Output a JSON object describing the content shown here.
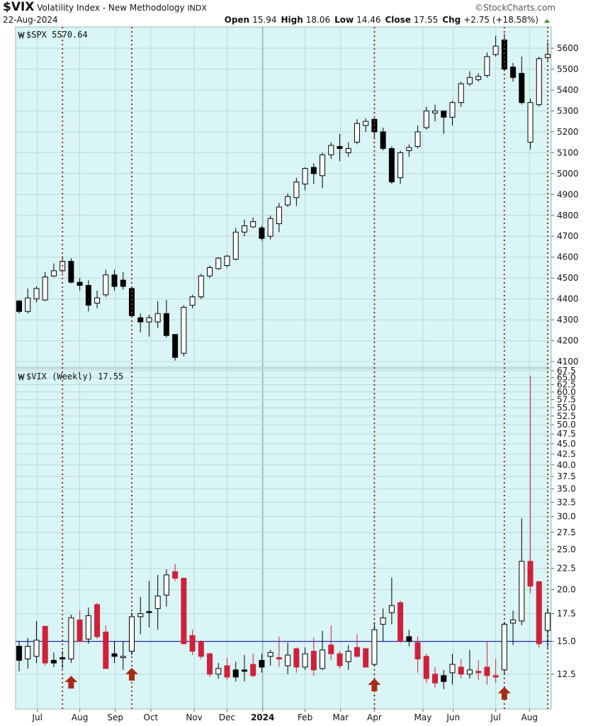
{
  "header": {
    "symbol": "$VIX",
    "name": "Volatility Index - New Methodology",
    "exchange": "INDX",
    "date": "22-Aug-2024",
    "copyright": "©StockCharts.com",
    "quote": [
      {
        "label": "Open",
        "value": 15.94
      },
      {
        "label": "High",
        "value": 18.06
      },
      {
        "label": "Low",
        "value": 14.46
      },
      {
        "label": "Close",
        "value": 17.55
      },
      {
        "label": "Chg",
        "value": "+2.75 (+18.58%)"
      }
    ]
  },
  "chart_data": [
    {
      "type": "candlestick",
      "label": "$SPX 5570.64",
      "categories": [
        null,
        null,
        null,
        null,
        null,
        null,
        null,
        null,
        null,
        null,
        null,
        null,
        null,
        null,
        null,
        null,
        null,
        null,
        null,
        null,
        null,
        null,
        null,
        null,
        null,
        null,
        null,
        null,
        null,
        null,
        null,
        null,
        null,
        null,
        null,
        null,
        null,
        null,
        null,
        null,
        null,
        null,
        null,
        null,
        null,
        null,
        null,
        null,
        null,
        null,
        null,
        null,
        null,
        null,
        null,
        null,
        null,
        null,
        null,
        null,
        null,
        null
      ],
      "open": [
        4390,
        4340,
        4400,
        4395,
        4510,
        4535,
        4580,
        4480,
        4465,
        4380,
        4420,
        4515,
        4490,
        4450,
        4310,
        4290,
        4290,
        4330,
        4230,
        4140,
        4370,
        4410,
        4510,
        4545,
        4560,
        4590,
        4720,
        4745,
        4740,
        4700,
        4760,
        4850,
        4885,
        4950,
        5030,
        4990,
        5090,
        5130,
        5100,
        5150,
        5230,
        5260,
        5200,
        5120,
        4980,
        5110,
        5130,
        5220,
        5290,
        5300,
        5270,
        5340,
        5430,
        5450,
        5470,
        5570,
        5640,
        5510,
        5480,
        5150,
        5330,
        5555
      ],
      "high": [
        4395,
        4450,
        4460,
        4530,
        4570,
        4605,
        4595,
        4500,
        4490,
        4440,
        4540,
        4540,
        4530,
        4460,
        4330,
        4325,
        4390,
        4395,
        4230,
        4370,
        4420,
        4520,
        4560,
        4600,
        4610,
        4740,
        4780,
        4790,
        4750,
        4800,
        4860,
        4905,
        4980,
        5030,
        5050,
        5100,
        5150,
        5190,
        5150,
        5260,
        5265,
        5265,
        5220,
        5130,
        5110,
        5140,
        5230,
        5320,
        5330,
        5300,
        5350,
        5440,
        5490,
        5480,
        5580,
        5660,
        5670,
        5530,
        5560,
        5360,
        5560,
        5630
      ],
      "low": [
        4330,
        4330,
        4385,
        4390,
        4505,
        4525,
        4475,
        4440,
        4340,
        4355,
        4410,
        4440,
        4445,
        4315,
        4240,
        4220,
        4260,
        4215,
        4105,
        4125,
        4355,
        4400,
        4500,
        4540,
        4550,
        4585,
        4700,
        4740,
        4680,
        4685,
        4720,
        4840,
        4845,
        4920,
        4950,
        4930,
        5070,
        5060,
        5080,
        5140,
        5200,
        5170,
        5110,
        4950,
        4950,
        5080,
        5120,
        5210,
        5250,
        5190,
        5230,
        5320,
        5420,
        5440,
        5460,
        5560,
        5490,
        5440,
        5330,
        5115,
        5320,
        5540
      ],
      "close": [
        4340,
        4405,
        4450,
        4505,
        4535,
        4580,
        4480,
        4465,
        4370,
        4405,
        4515,
        4460,
        4460,
        4320,
        4290,
        4310,
        4330,
        4225,
        4120,
        4360,
        4410,
        4510,
        4550,
        4595,
        4605,
        4720,
        4750,
        4770,
        4690,
        4785,
        4840,
        4890,
        4960,
        5025,
        5000,
        5090,
        5135,
        5120,
        5120,
        5240,
        5250,
        5200,
        5120,
        4960,
        5100,
        5125,
        5200,
        5300,
        5300,
        5270,
        5340,
        5430,
        5460,
        5465,
        5560,
        5610,
        5500,
        5460,
        5340,
        5340,
        5550,
        5570
      ],
      "up_color": "#000000",
      "down_color": "#000000",
      "color_by_change": false,
      "ylim": [
        4073,
        5702
      ],
      "log_scale": false,
      "yticks": [
        4100,
        4200,
        4300,
        4400,
        4500,
        4600,
        4700,
        4800,
        4900,
        5000,
        5100,
        5200,
        5300,
        5400,
        5500,
        5600
      ],
      "grid": true
    },
    {
      "type": "candlestick",
      "label": "$VIX (Weekly) 17.55",
      "categories": [
        null,
        null,
        null,
        null,
        null,
        null,
        null,
        null,
        null,
        null,
        null,
        null,
        null,
        null,
        null,
        null,
        null,
        null,
        null,
        null,
        null,
        null,
        null,
        null,
        null,
        null,
        null,
        null,
        null,
        null,
        null,
        null,
        null,
        null,
        null,
        null,
        null,
        null,
        null,
        null,
        null,
        null,
        null,
        null,
        null,
        null,
        null,
        null,
        null,
        null,
        null,
        null,
        null,
        null,
        null,
        null,
        null,
        null,
        null,
        null,
        null,
        null
      ],
      "open": [
        14.6,
        13.6,
        13.8,
        16.3,
        13.5,
        13.7,
        13.6,
        16.9,
        15.2,
        18.4,
        15.8,
        14.0,
        13.7,
        14.2,
        17.2,
        17.7,
        18.0,
        19.4,
        22.1,
        21.3,
        15.5,
        15.0,
        14.0,
        12.5,
        13.1,
        12.8,
        12.8,
        13.2,
        13.5,
        13.8,
        13.7,
        13.1,
        14.4,
        13.0,
        14.2,
        12.9,
        14.7,
        14.0,
        13.4,
        14.5,
        14.4,
        13.2,
        16.5,
        17.6,
        18.6,
        15.4,
        14.9,
        13.8,
        12.5,
        12.4,
        12.6,
        13.0,
        12.5,
        12.7,
        13.0,
        12.4,
        12.8,
        16.6,
        16.8,
        23.4,
        20.9,
        15.94
      ],
      "high": [
        15.0,
        15.3,
        16.8,
        16.4,
        14.1,
        14.2,
        17.4,
        17.8,
        18.1,
        18.6,
        16.4,
        15.0,
        15.0,
        17.6,
        19.2,
        21.0,
        21.7,
        22.4,
        23.1,
        21.4,
        16.0,
        15.1,
        14.1,
        13.3,
        13.7,
        13.4,
        13.9,
        14.0,
        14.0,
        14.3,
        15.4,
        14.9,
        14.5,
        14.5,
        15.3,
        15.9,
        16.4,
        14.2,
        14.7,
        15.6,
        14.5,
        16.6,
        18.0,
        21.4,
        18.8,
        16.0,
        15.4,
        14.0,
        13.0,
        12.8,
        14.0,
        13.6,
        14.3,
        13.5,
        15.0,
        13.6,
        16.7,
        17.8,
        29.7,
        65.7,
        21.0,
        18.06
      ],
      "low": [
        12.7,
        12.9,
        13.3,
        13.1,
        13.0,
        12.9,
        13.3,
        15.0,
        14.8,
        15.2,
        12.9,
        13.3,
        12.8,
        13.9,
        15.6,
        16.2,
        16.0,
        18.2,
        21.0,
        14.8,
        13.9,
        13.6,
        12.3,
        12.2,
        12.1,
        12.0,
        12.0,
        12.3,
        12.6,
        13.1,
        13.0,
        12.5,
        12.6,
        12.8,
        12.4,
        12.8,
        13.5,
        12.9,
        12.8,
        13.7,
        13.3,
        13.1,
        15.0,
        16.5,
        14.9,
        14.6,
        12.6,
        11.9,
        11.6,
        11.5,
        11.8,
        12.2,
        12.2,
        12.1,
        11.8,
        11.9,
        12.5,
        14.7,
        16.4,
        19.6,
        14.5,
        14.46
      ],
      "close": [
        13.5,
        14.6,
        15.1,
        13.3,
        13.3,
        13.6,
        17.1,
        15.0,
        17.3,
        15.4,
        12.9,
        13.8,
        13.8,
        17.2,
        17.5,
        17.6,
        19.3,
        21.7,
        21.3,
        14.8,
        14.2,
        13.8,
        12.5,
        12.9,
        12.3,
        12.3,
        12.7,
        12.4,
        13.0,
        14.1,
        13.6,
        13.9,
        13.0,
        14.0,
        12.8,
        14.3,
        14.0,
        13.1,
        14.2,
        13.8,
        13.0,
        16.0,
        17.1,
        18.3,
        15.0,
        15.0,
        13.6,
        12.2,
        11.9,
        12.0,
        13.2,
        12.5,
        12.8,
        12.6,
        12.4,
        12.3,
        16.5,
        16.9,
        23.4,
        20.4,
        14.8,
        17.55
      ],
      "up_color": "#000000",
      "down_color": "#d0203a",
      "color_by_change": true,
      "ylim": [
        10.3,
        68.3
      ],
      "log_scale": true,
      "yticks": [
        12.5,
        {
          "value": 15,
          "label": "15.0"
        },
        17.5,
        {
          "value": 20,
          "label": "20.0"
        },
        22.5,
        {
          "value": 25,
          "label": "25.0"
        },
        27.5,
        {
          "value": 30,
          "label": "30.0"
        },
        32.5,
        {
          "value": 35,
          "label": "35.0"
        },
        37.5,
        {
          "value": 40,
          "label": "40.0"
        },
        42.5,
        {
          "value": 45,
          "label": "45.0"
        },
        47.5,
        {
          "value": 50,
          "label": "50.0"
        },
        52.5,
        {
          "value": 55,
          "label": "55.0"
        },
        57.5,
        {
          "value": 60,
          "label": "60.0"
        },
        62.5,
        {
          "value": 65,
          "label": "65.0"
        },
        67.5
      ],
      "grid": true,
      "reference_line": 15,
      "reference_color": "#2b2ba8",
      "xticks": [
        {
          "value": 2.1,
          "label": "Jul"
        },
        {
          "value": 7,
          "label": "Aug"
        },
        {
          "value": 11.1,
          "label": "Sep"
        },
        {
          "value": 15.2,
          "label": "Oct"
        },
        {
          "value": 20.2,
          "label": "Nov"
        },
        {
          "value": 24,
          "label": "Dec"
        },
        {
          "value": 28.1,
          "label": "2024"
        },
        {
          "value": 33,
          "label": "Feb"
        },
        {
          "value": 37.1,
          "label": "Mar"
        },
        {
          "value": 41,
          "label": "Apr"
        },
        {
          "value": 46.6,
          "label": "May"
        },
        {
          "value": 50.1,
          "label": "Jun"
        },
        {
          "value": 55,
          "label": "Jul"
        },
        {
          "value": 58.9,
          "label": "Aug"
        }
      ],
      "signal_lines": [
        5,
        13,
        41,
        56,
        61
      ],
      "signal_arrows": [
        6,
        13,
        41,
        56
      ],
      "signal_color": "#a82a14"
    }
  ]
}
